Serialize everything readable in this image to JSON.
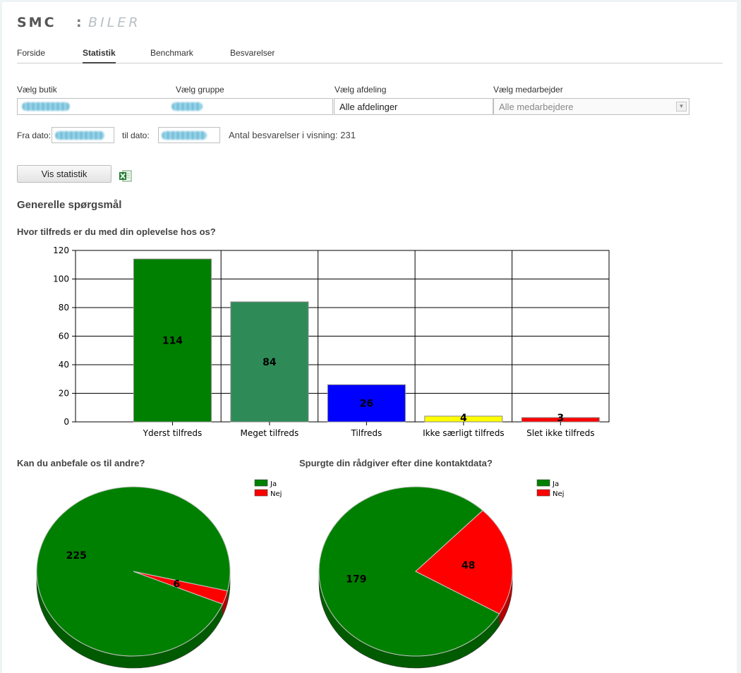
{
  "brand": {
    "left": "SMC",
    "sep": ":",
    "right": "BILER"
  },
  "nav": {
    "items": [
      {
        "label": "Forside",
        "active": false
      },
      {
        "label": "Statistik",
        "active": true
      },
      {
        "label": "Benchmark",
        "active": false
      },
      {
        "label": "Besvarelser",
        "active": false
      }
    ]
  },
  "filters": {
    "butik_label": "Vælg butik",
    "gruppe_label": "Vælg gruppe",
    "afdeling_label": "Vælg afdeling",
    "medarbejder_label": "Vælg medarbejder",
    "afdeling_value": "Alle afdelinger",
    "medarbejder_value": "Alle medarbejdere",
    "fra_label": "Fra dato:",
    "til_label": "til dato:",
    "count_text": "Antal besvarelser i visning: 231"
  },
  "actions": {
    "show_label": "Vis statistik",
    "export_icon": "excel-icon"
  },
  "section_title": "Generelle spørgsmål",
  "colors": {
    "bar1": "#008000",
    "bar2": "#2e8b57",
    "bar3": "#0000ff",
    "bar4": "#ffff00",
    "bar5": "#ff0000",
    "ja": "#008000",
    "nej": "#ff0000"
  },
  "chart_data": [
    {
      "type": "bar",
      "title": "Hvor tilfreds er du med din oplevelse hos os?",
      "categories": [
        "Yderst tilfreds",
        "Meget tilfreds",
        "Tilfreds",
        "Ikke særligt tilfreds",
        "Slet ikke tilfreds"
      ],
      "values": [
        114,
        84,
        26,
        4,
        3
      ],
      "colors": [
        "#008000",
        "#2e8b57",
        "#0000ff",
        "#ffff00",
        "#ff0000"
      ],
      "ylim": [
        0,
        120
      ],
      "yticks": [
        0,
        20,
        40,
        60,
        80,
        100,
        120
      ],
      "grid": true
    },
    {
      "type": "pie",
      "title": "Kan du anbefale os til andre?",
      "labels": [
        "Ja",
        "Nej"
      ],
      "values": [
        225,
        6
      ],
      "colors": [
        "#008000",
        "#ff0000"
      ],
      "legend": "top-right"
    },
    {
      "type": "pie",
      "title": "Spurgte din rådgiver efter dine kontaktdata?",
      "labels": [
        "Ja",
        "Nej"
      ],
      "values": [
        179,
        48
      ],
      "colors": [
        "#008000",
        "#ff0000"
      ],
      "legend": "top-right"
    }
  ]
}
